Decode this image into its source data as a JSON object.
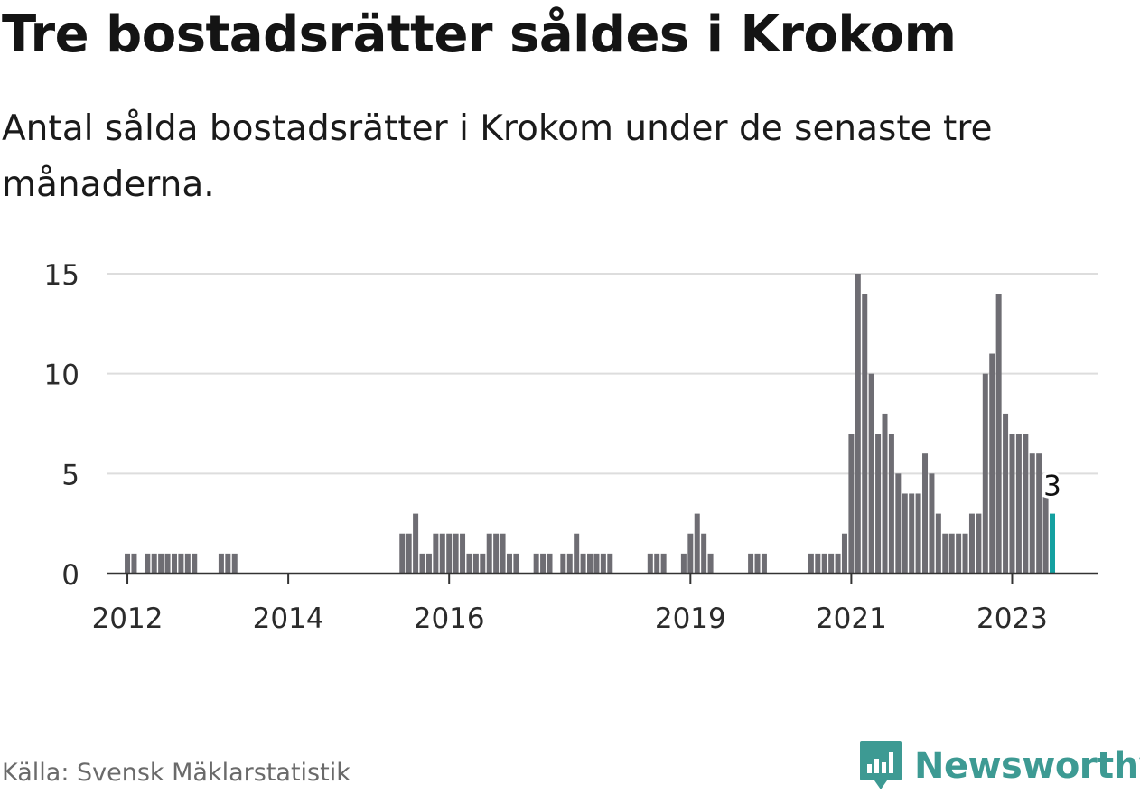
{
  "header": {
    "title": "Tre bostadsrätter såldes i Krokom",
    "subtitle": "Antal sålda bostadsrätter i Krokom under de senaste tre månaderna."
  },
  "footer": {
    "source": "Källa: Svensk Mäklarstatistik",
    "brand": "Newsworthy"
  },
  "colors": {
    "bar": "#6e6d73",
    "highlight": "#14a0a0",
    "grid": "#dddddd",
    "axis": "#333333",
    "brand": "#3d9a93"
  },
  "icons": {
    "brand_logo": "bar-chart-speech-bubble-icon"
  },
  "chart_data": {
    "type": "bar",
    "start": "2011-10",
    "frequency": "monthly",
    "values": [
      0,
      0,
      0,
      1,
      1,
      0,
      1,
      1,
      1,
      1,
      1,
      1,
      1,
      1,
      0,
      0,
      0,
      1,
      1,
      1,
      0,
      0,
      0,
      0,
      0,
      0,
      0,
      0,
      0,
      0,
      0,
      0,
      0,
      0,
      0,
      0,
      0,
      0,
      0,
      0,
      0,
      0,
      0,
      0,
      2,
      2,
      3,
      1,
      1,
      2,
      2,
      2,
      2,
      2,
      1,
      1,
      1,
      2,
      2,
      2,
      1,
      1,
      0,
      0,
      1,
      1,
      1,
      0,
      1,
      1,
      2,
      1,
      1,
      1,
      1,
      1,
      0,
      0,
      0,
      0,
      0,
      1,
      1,
      1,
      0,
      0,
      1,
      2,
      3,
      2,
      1,
      0,
      0,
      0,
      0,
      0,
      1,
      1,
      1,
      0,
      0,
      0,
      0,
      0,
      0,
      1,
      1,
      1,
      1,
      1,
      2,
      7,
      15,
      14,
      10,
      7,
      8,
      7,
      5,
      4,
      4,
      4,
      6,
      5,
      3,
      2,
      2,
      2,
      2,
      3,
      3,
      10,
      11,
      14,
      8,
      7,
      7,
      7,
      6,
      6,
      4,
      3
    ],
    "highlight": {
      "label": "3",
      "value": 3
    },
    "x_ticks": [
      "2012",
      "2014",
      "2016",
      "2019",
      "2021",
      "2023"
    ],
    "y_ticks": [
      0,
      5,
      10,
      15
    ],
    "ylim": [
      0,
      15
    ],
    "grid": true,
    "xlabel": "",
    "ylabel": ""
  }
}
